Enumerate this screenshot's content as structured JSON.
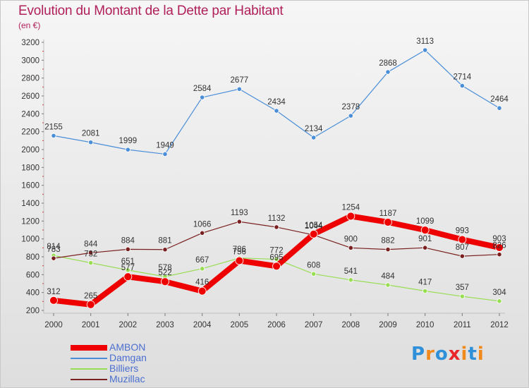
{
  "title": "Evolution du Montant de la Dette par Habitant",
  "subtitle": "(en €)",
  "logo": {
    "text": "Proxiti",
    "colors": [
      "#2f8fd8",
      "#f08a1c",
      "#2f8fd8",
      "#e8262a",
      "#f08a1c",
      "#2f8fd8",
      "#f08a1c"
    ]
  },
  "chart_data": {
    "type": "line",
    "x": [
      "2000",
      "2001",
      "2002",
      "2003",
      "2004",
      "2005",
      "2006",
      "2007",
      "2008",
      "2009",
      "2010",
      "2011",
      "2012"
    ],
    "ylim": [
      200,
      3200
    ],
    "yticks": [
      200,
      400,
      600,
      800,
      1000,
      1200,
      1400,
      1600,
      1800,
      2000,
      2200,
      2400,
      2600,
      2800,
      3000,
      3200
    ],
    "grid": false,
    "legend_position": "bottom-left",
    "series": [
      {
        "name": "AMBON",
        "color": "#ee0000",
        "width": 8,
        "values": [
          312,
          265,
          577,
          522,
          416,
          756,
          695,
          1054,
          1254,
          1187,
          1099,
          993,
          903
        ]
      },
      {
        "name": "Damgan",
        "color": "#4a8ed8",
        "width": 1.2,
        "values": [
          2155,
          2081,
          1999,
          1949,
          2584,
          2677,
          2434,
          2134,
          2378,
          2868,
          3113,
          2714,
          2464
        ]
      },
      {
        "name": "Billiers",
        "color": "#99dd55",
        "width": 1.2,
        "values": [
          814,
          732,
          651,
          578,
          667,
          786,
          772,
          608,
          541,
          484,
          417,
          357,
          304
        ]
      },
      {
        "name": "Muzillac",
        "color": "#7a2020",
        "width": 1.2,
        "values": [
          783,
          844,
          884,
          881,
          1066,
          1193,
          1132,
          1044,
          900,
          882,
          901,
          807,
          826
        ]
      }
    ]
  }
}
